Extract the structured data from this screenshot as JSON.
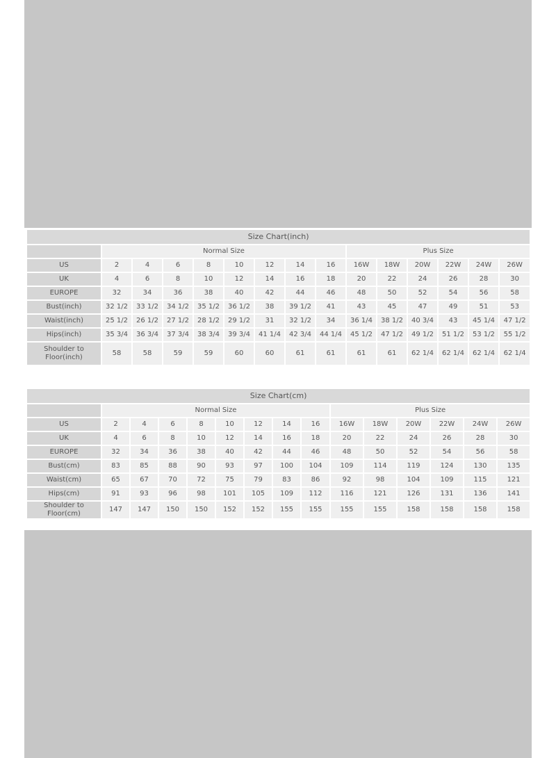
{
  "charts": [
    {
      "title": "Size Chart(inch)",
      "groups": [
        "Normal Size",
        "Plus Size"
      ],
      "rows": [
        {
          "label": "US",
          "values": [
            "2",
            "4",
            "6",
            "8",
            "10",
            "12",
            "14",
            "16",
            "16W",
            "18W",
            "20W",
            "22W",
            "24W",
            "26W"
          ]
        },
        {
          "label": "UK",
          "values": [
            "4",
            "6",
            "8",
            "10",
            "12",
            "14",
            "16",
            "18",
            "20",
            "22",
            "24",
            "26",
            "28",
            "30"
          ]
        },
        {
          "label": "EUROPE",
          "values": [
            "32",
            "34",
            "36",
            "38",
            "40",
            "42",
            "44",
            "46",
            "48",
            "50",
            "52",
            "54",
            "56",
            "58"
          ]
        },
        {
          "label": "Bust(inch)",
          "values": [
            "32 1/2",
            "33 1/2",
            "34 1/2",
            "35 1/2",
            "36 1/2",
            "38",
            "39 1/2",
            "41",
            "43",
            "45",
            "47",
            "49",
            "51",
            "53"
          ]
        },
        {
          "label": "Waist(inch)",
          "values": [
            "25 1/2",
            "26 1/2",
            "27 1/2",
            "28 1/2",
            "29 1/2",
            "31",
            "32 1/2",
            "34",
            "36 1/4",
            "38 1/2",
            "40 3/4",
            "43",
            "45 1/4",
            "47 1/2"
          ]
        },
        {
          "label": "Hips(inch)",
          "values": [
            "35 3/4",
            "36 3/4",
            "37 3/4",
            "38 3/4",
            "39 3/4",
            "41 1/4",
            "42 3/4",
            "44 1/4",
            "45 1/2",
            "47 1/2",
            "49 1/2",
            "51 1/2",
            "53 1/2",
            "55 1/2"
          ]
        },
        {
          "label": "Shoulder to Floor(inch)",
          "values": [
            "58",
            "58",
            "59",
            "59",
            "60",
            "60",
            "61",
            "61",
            "61",
            "61",
            "62 1/4",
            "62 1/4",
            "62 1/4",
            "62 1/4"
          ]
        }
      ]
    },
    {
      "title": "Size Chart(cm)",
      "groups": [
        "Normal Size",
        "Plus Size"
      ],
      "rows": [
        {
          "label": "US",
          "values": [
            "2",
            "4",
            "6",
            "8",
            "10",
            "12",
            "14",
            "16",
            "16W",
            "18W",
            "20W",
            "22W",
            "24W",
            "26W"
          ]
        },
        {
          "label": "UK",
          "values": [
            "4",
            "6",
            "8",
            "10",
            "12",
            "14",
            "16",
            "18",
            "20",
            "22",
            "24",
            "26",
            "28",
            "30"
          ]
        },
        {
          "label": "EUROPE",
          "values": [
            "32",
            "34",
            "36",
            "38",
            "40",
            "42",
            "44",
            "46",
            "48",
            "50",
            "52",
            "54",
            "56",
            "58"
          ]
        },
        {
          "label": "Bust(cm)",
          "values": [
            "83",
            "85",
            "88",
            "90",
            "93",
            "97",
            "100",
            "104",
            "109",
            "114",
            "119",
            "124",
            "130",
            "135"
          ]
        },
        {
          "label": "Waist(cm)",
          "values": [
            "65",
            "67",
            "70",
            "72",
            "75",
            "79",
            "83",
            "86",
            "92",
            "98",
            "104",
            "109",
            "115",
            "121"
          ]
        },
        {
          "label": "Hips(cm)",
          "values": [
            "91",
            "93",
            "96",
            "98",
            "101",
            "105",
            "109",
            "112",
            "116",
            "121",
            "126",
            "131",
            "136",
            "141"
          ]
        },
        {
          "label": "Shoulder to Floor(cm)",
          "values": [
            "147",
            "147",
            "150",
            "150",
            "152",
            "152",
            "155",
            "155",
            "155",
            "155",
            "158",
            "158",
            "158",
            "158"
          ]
        }
      ]
    }
  ]
}
